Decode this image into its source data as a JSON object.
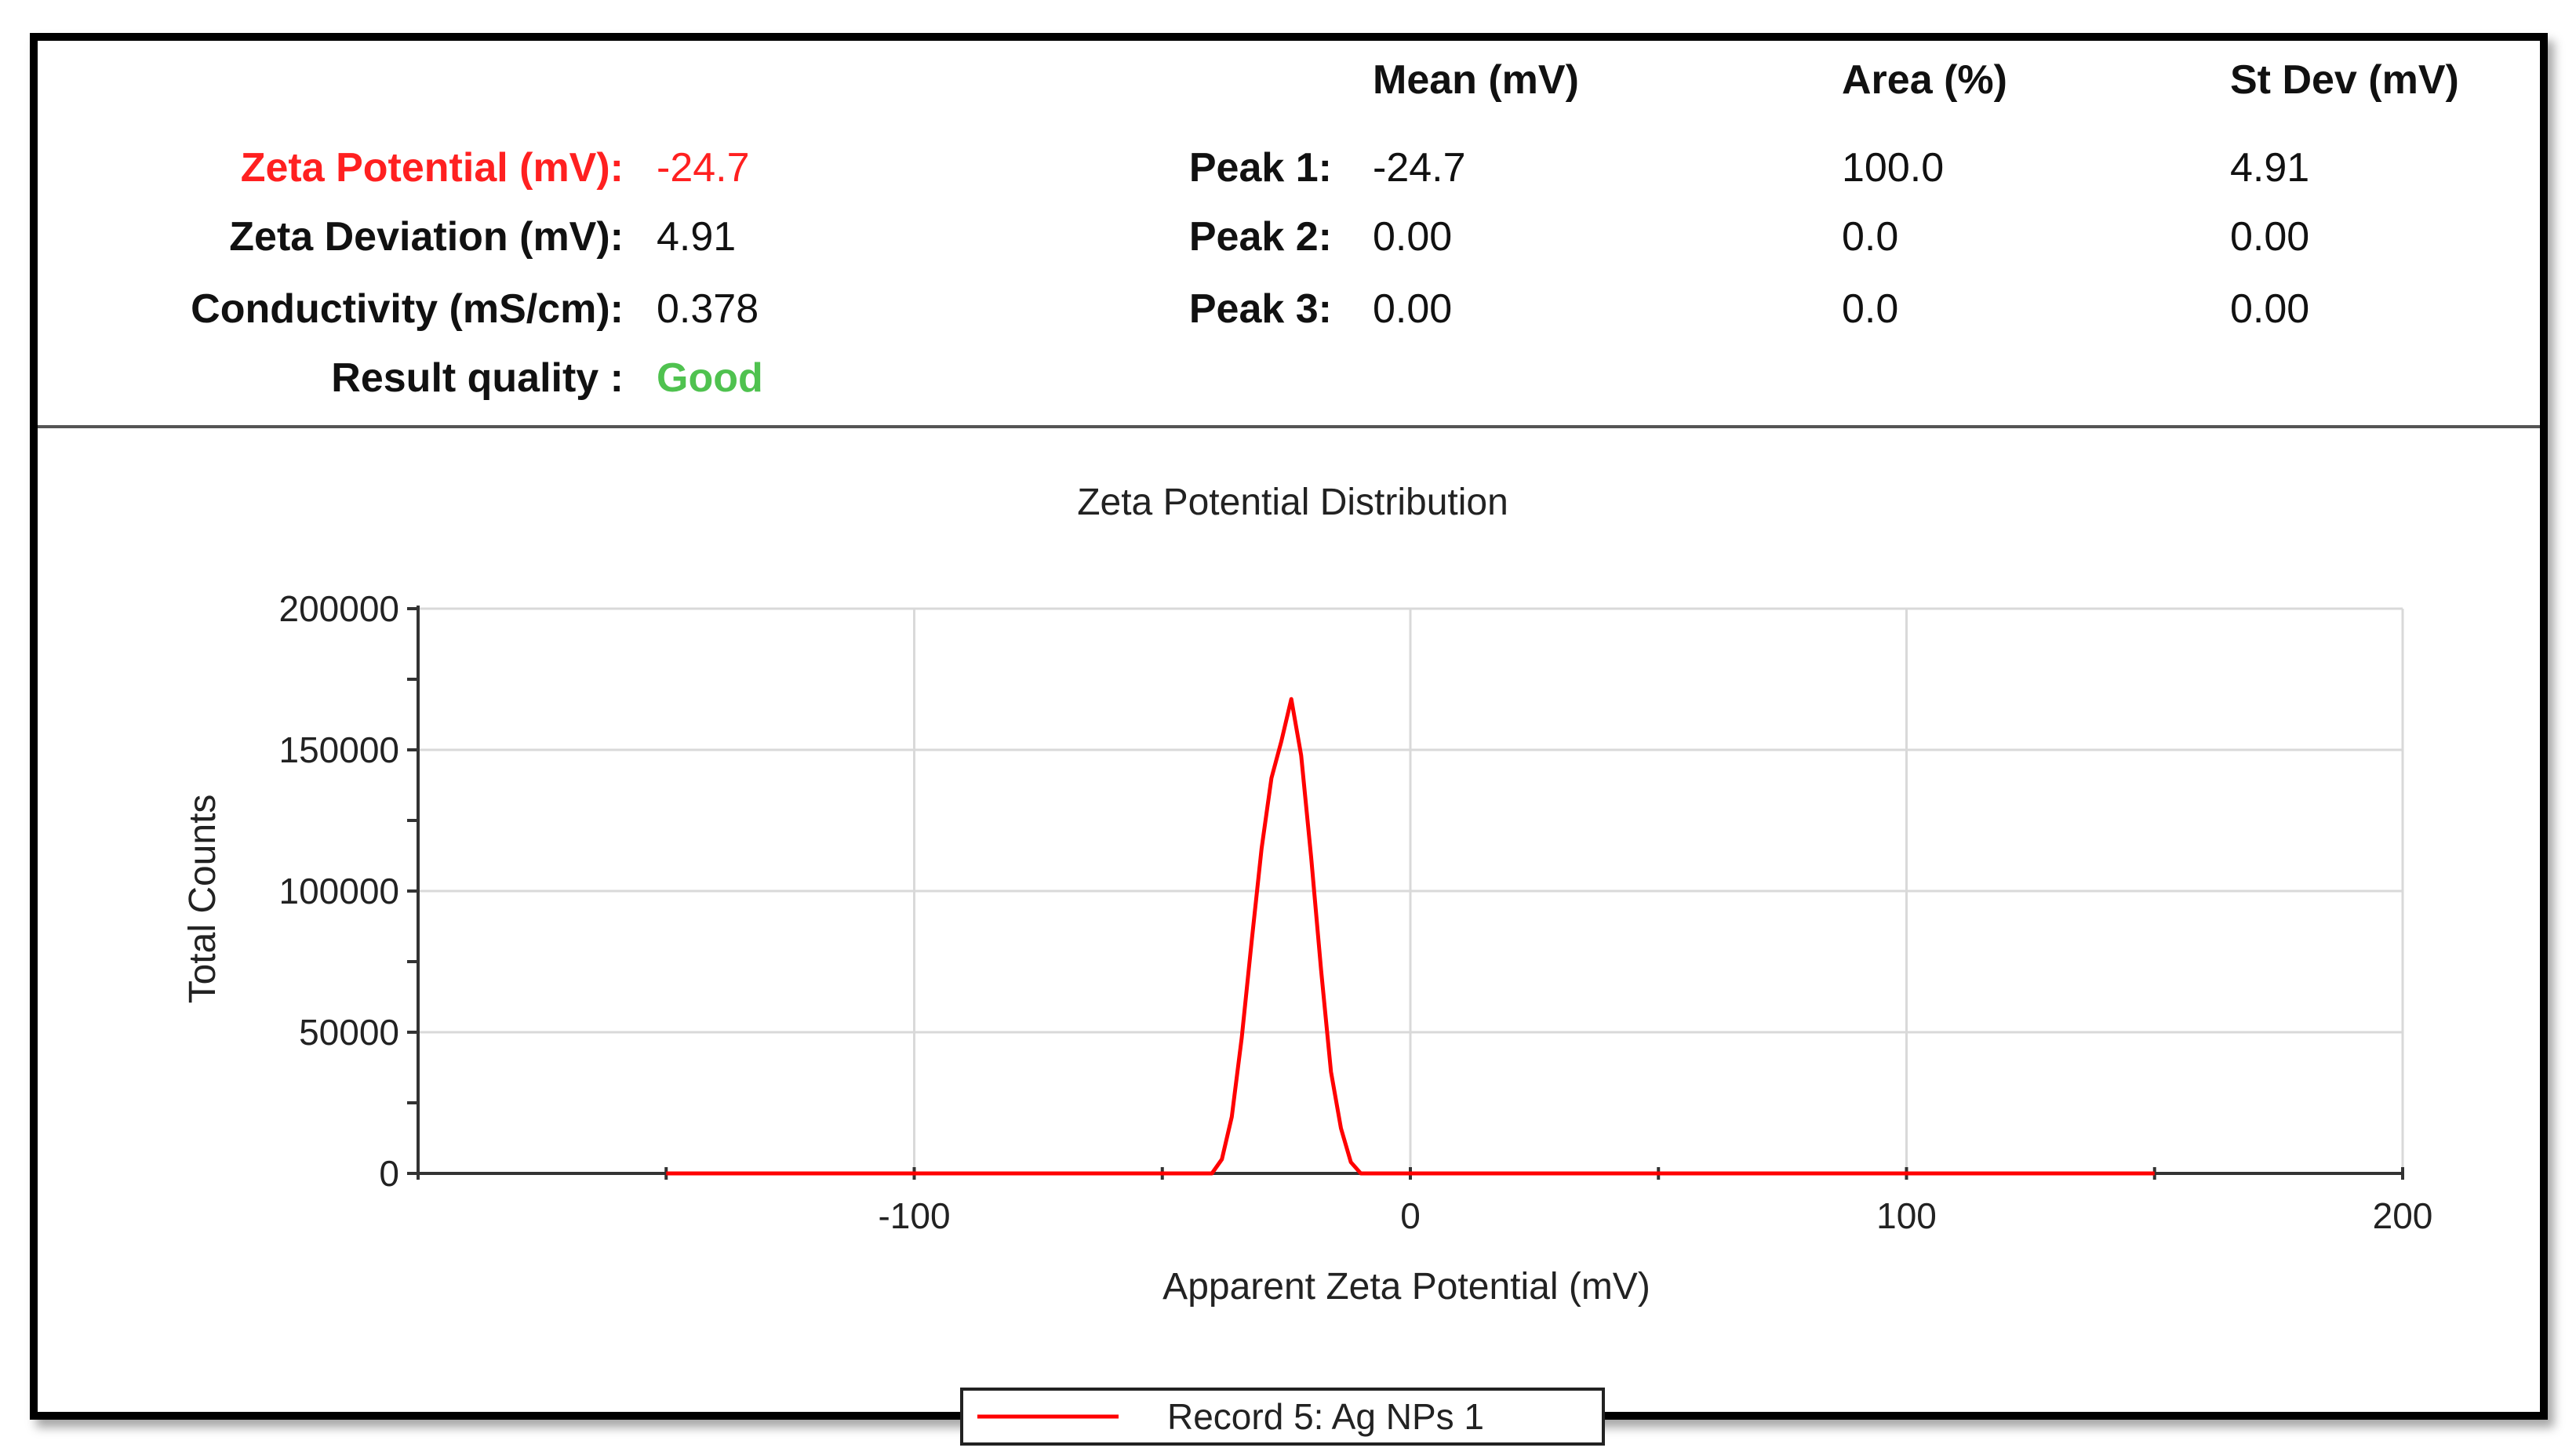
{
  "summary": {
    "headers": {
      "mean": "Mean (mV)",
      "area": "Area (%)",
      "stdev": "St Dev (mV)"
    },
    "left": [
      {
        "label": "Zeta Potential (mV):",
        "value": "-24.7"
      },
      {
        "label": "Zeta Deviation (mV):",
        "value": "4.91"
      },
      {
        "label": "Conductivity (mS/cm):",
        "value": "0.378"
      },
      {
        "label": "Result quality :",
        "value": "Good"
      }
    ],
    "peaks": [
      {
        "label": "Peak 1:",
        "mean": "-24.7",
        "area": "100.0",
        "stdev": "4.91"
      },
      {
        "label": "Peak 2:",
        "mean": "0.00",
        "area": "0.0",
        "stdev": "0.00"
      },
      {
        "label": "Peak 3:",
        "mean": "0.00",
        "area": "0.0",
        "stdev": "0.00"
      }
    ],
    "colors": {
      "highlight": "#ff2020",
      "good": "#4fc24f"
    }
  },
  "chart_data": {
    "type": "line",
    "title": "Zeta Potential Distribution",
    "xlabel": "Apparent Zeta Potential (mV)",
    "ylabel": "Total Counts",
    "xlim": [
      -200,
      200
    ],
    "ylim": [
      0,
      200000
    ],
    "xticks": [
      -100,
      0,
      100,
      200
    ],
    "yticks": [
      0,
      50000,
      100000,
      150000,
      200000
    ],
    "grid": true,
    "legend": "bottom-center",
    "series": [
      {
        "name": "Record 5: Ag NPs 1",
        "color": "#ff0000",
        "x": [
          -150,
          -100,
          -50,
          -40,
          -38,
          -36,
          -34,
          -32,
          -30,
          -28,
          -26,
          -24,
          -22,
          -20,
          -18,
          -16,
          -14,
          -12,
          -10,
          0,
          50,
          100,
          150
        ],
        "y": [
          0,
          0,
          0,
          0,
          5000,
          20000,
          48000,
          82000,
          115000,
          140000,
          153000,
          168000,
          148000,
          112000,
          72000,
          36000,
          16000,
          4000,
          0,
          0,
          0,
          0,
          0
        ]
      }
    ]
  }
}
